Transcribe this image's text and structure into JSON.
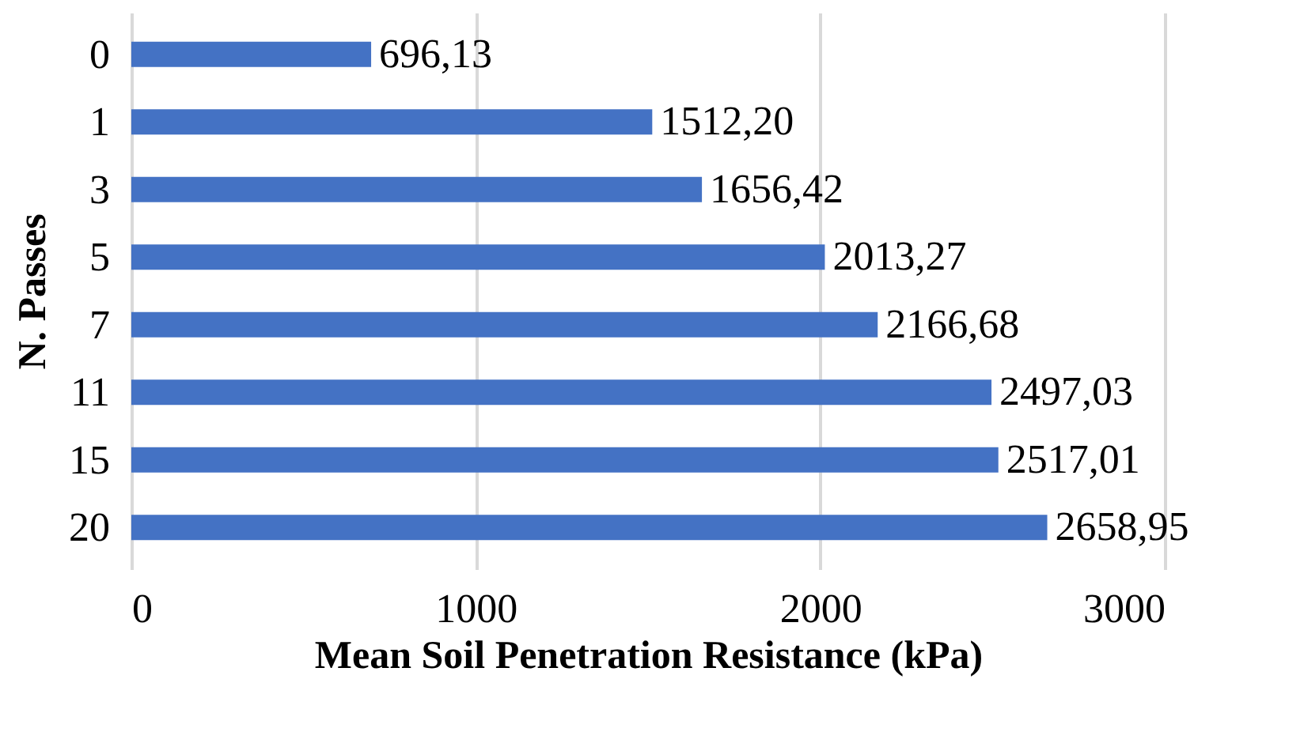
{
  "chart_data": {
    "type": "bar",
    "orientation": "horizontal",
    "xlabel": "Mean Soil Penetration Resistance (kPa)",
    "ylabel": "N. Passes",
    "categories": [
      "0",
      "1",
      "3",
      "5",
      "7",
      "11",
      "15",
      "20"
    ],
    "values": [
      696.13,
      1512.2,
      1656.42,
      2013.27,
      2166.68,
      2497.03,
      2517.01,
      2658.95
    ],
    "value_labels": [
      "696,13",
      "1512,20",
      "1656,42",
      "2013,27",
      "2166,68",
      "2497,03",
      "2517,01",
      "2658,95"
    ],
    "color": "#4472c4",
    "xlim": [
      0,
      3000
    ],
    "xticks": [
      0,
      1000,
      2000,
      3000
    ],
    "grid": "x"
  }
}
